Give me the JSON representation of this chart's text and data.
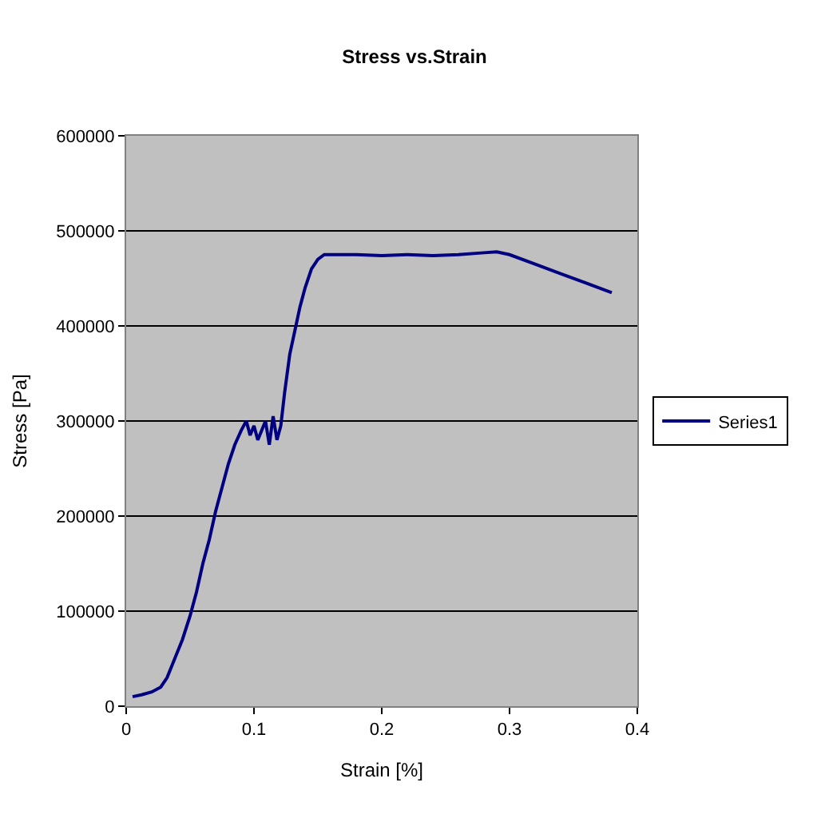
{
  "chart_data": {
    "type": "line",
    "title": "Stress vs.Strain",
    "xlabel": "Strain [%]",
    "ylabel": "Stress [Pa]",
    "xlim": [
      0,
      0.4
    ],
    "xticks": [
      0,
      0.1,
      0.2,
      0.3,
      0.4
    ],
    "ylim": [
      0,
      600000
    ],
    "yticks": [
      0,
      100000,
      200000,
      300000,
      400000,
      500000,
      600000
    ],
    "grid": "y",
    "legend": "right",
    "marker": "none",
    "line_style": "solid",
    "series": [
      {
        "name": "Series1",
        "color": "#000080",
        "x": [
          0.005,
          0.012,
          0.02,
          0.027,
          0.032,
          0.038,
          0.044,
          0.05,
          0.055,
          0.06,
          0.065,
          0.07,
          0.075,
          0.08,
          0.085,
          0.09,
          0.094,
          0.097,
          0.1,
          0.103,
          0.106,
          0.109,
          0.112,
          0.115,
          0.118,
          0.121,
          0.124,
          0.128,
          0.132,
          0.136,
          0.14,
          0.145,
          0.15,
          0.155,
          0.16,
          0.18,
          0.2,
          0.22,
          0.24,
          0.26,
          0.28,
          0.29,
          0.3,
          0.32,
          0.34,
          0.36,
          0.38
        ],
        "values": [
          10000,
          12000,
          15000,
          20000,
          30000,
          50000,
          70000,
          95000,
          120000,
          150000,
          175000,
          205000,
          230000,
          255000,
          275000,
          290000,
          300000,
          285000,
          295000,
          280000,
          290000,
          300000,
          275000,
          305000,
          280000,
          295000,
          330000,
          370000,
          395000,
          420000,
          440000,
          460000,
          470000,
          475000,
          475000,
          475000,
          474000,
          475000,
          474000,
          475000,
          477000,
          478000,
          475000,
          465000,
          455000,
          445000,
          435000
        ]
      }
    ]
  }
}
